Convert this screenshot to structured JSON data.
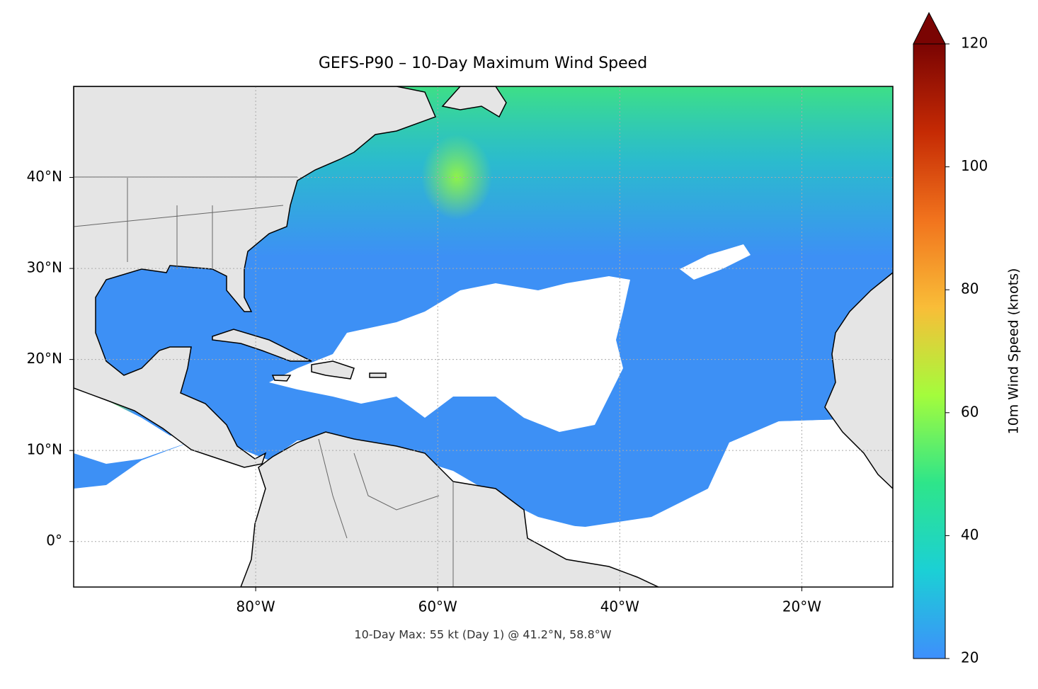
{
  "chart_data": {
    "type": "map",
    "title": "GEFS-P90 – 10-Day Maximum Wind Speed",
    "annotation": "10-Day Max: 55 kt (Day 1) @ 41.2°N, 58.8°W",
    "xlim": [
      -100,
      -10
    ],
    "ylim": [
      -5,
      50
    ],
    "xticks": [
      {
        "value": -80,
        "label": "80°W"
      },
      {
        "value": -60,
        "label": "60°W"
      },
      {
        "value": -40,
        "label": "40°W"
      },
      {
        "value": -20,
        "label": "20°W"
      }
    ],
    "yticks": [
      {
        "value": 0,
        "label": "0°"
      },
      {
        "value": 10,
        "label": "10°N"
      },
      {
        "value": 20,
        "label": "20°N"
      },
      {
        "value": 30,
        "label": "30°N"
      },
      {
        "value": 40,
        "label": "40°N"
      }
    ],
    "grid": true,
    "colorbar": {
      "label": "10m Wind Speed (knots)",
      "lim": [
        20,
        120
      ],
      "ticks": [
        20,
        40,
        60,
        80,
        100,
        120
      ],
      "colors": [
        "#3e8ffc",
        "#1bd0d5",
        "#2ee58a",
        "#a4fc3c",
        "#f9bd38",
        "#f1731d",
        "#c52a04",
        "#7a0403"
      ]
    }
  }
}
